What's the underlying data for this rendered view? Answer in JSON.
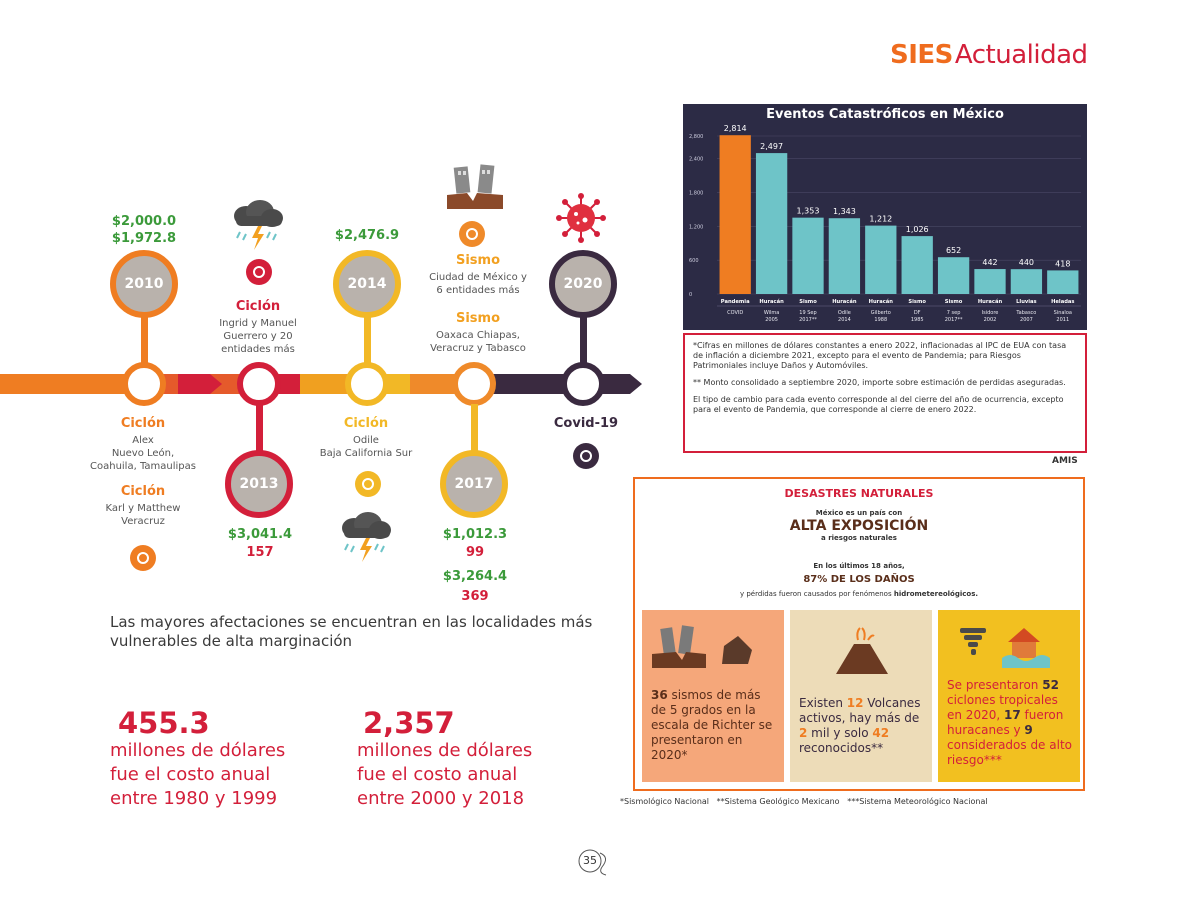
{
  "header": {
    "brand_a": "SIES",
    "brand_b": "Actualidad"
  },
  "timeline": {
    "y2010": {
      "year": "2010",
      "amount1": "$2,000.0",
      "amount2": "$1,972.8",
      "below_title1": "Ciclón",
      "below_text1": "Alex\nNuevo León,\nCoahuila, Tamaulipas",
      "below_title2": "Ciclón",
      "below_text2": "Karl y Matthew\nVeracruz"
    },
    "y2013": {
      "year": "2013",
      "above_title": "Ciclón",
      "above_text": "Ingrid y Manuel\nGuerrero y 20\nentidades más",
      "amount": "$3,041.4",
      "count": "157"
    },
    "y2014": {
      "year": "2014",
      "amount": "$2,476.9",
      "below_title": "Ciclón",
      "below_text": "Odile\nBaja California Sur"
    },
    "y2017": {
      "year": "2017",
      "above_title1": "Sismo",
      "above_text1": "Ciudad de México y\n6 entidades más",
      "above_title2": "Sismo",
      "above_text2": "Oaxaca Chiapas,\nVeracruz y Tabasco",
      "amount1": "$1,012.3",
      "count1": "99",
      "amount2": "$3,264.4",
      "count2": "369"
    },
    "y2020": {
      "year": "2020",
      "below_title": "Covid-19"
    }
  },
  "lede": "Las mayores afectaciones se encuentran en las localidades más vulnerables de alta marginación",
  "stat1": {
    "value": "455.3",
    "caption": "millones de dólares\nfue el costo anual\nentre 1980 y 1999"
  },
  "stat2": {
    "value": "2,357",
    "caption": "millones de dólares\nfue el costo anual\nentre 2000 y 2018"
  },
  "chart_data": {
    "type": "bar",
    "title": "Eventos Catastróficos en México",
    "ylim": [
      0,
      2800
    ],
    "yticks": [
      "0",
      "600",
      "1,200",
      "1,800",
      "2,400",
      "2,800"
    ],
    "categories": [
      "Pandemia",
      "Huracán",
      "Sismo",
      "Huracán",
      "Huracán",
      "Sismo",
      "Sismo",
      "Huracán",
      "Lluvias",
      "Heladas"
    ],
    "sublabels": [
      "COVID",
      "Wilma\n2005",
      "19 Sep\n2017**",
      "Odile\n2014",
      "Gilberto\n1988",
      "DF\n1985",
      "7 sep\n2017**",
      "Isidore\n2002",
      "Tabasco\n2007",
      "Sinaloa\n2011"
    ],
    "values": [
      2814,
      2497,
      1353,
      1343,
      1212,
      1026,
      652,
      442,
      440,
      418
    ],
    "value_labels": [
      "2,814",
      "2,497",
      "1,353",
      "1,343",
      "1,212",
      "1,026",
      "652",
      "442",
      "440",
      "418"
    ],
    "colors": {
      "highlight": "#ef7d22",
      "bars": "#6ec4c8",
      "background": "#2c2b45"
    },
    "grid": true
  },
  "notes": {
    "n1": "*Cifras en millones de dólares constantes a enero 2022, inflacionadas al IPC de EUA con tasa de inflación a diciembre 2021, excepto para el evento de Pandemia; para Riesgos Patrimoniales incluye Daños y Automóviles.",
    "n2": "** Monto consolidado a septiembre 2020, importe sobre estimación de perdidas aseguradas.",
    "n3": "El tipo de cambio para cada evento corresponde al del cierre del año de ocurrencia, excepto para el evento de Pandemia, que corresponde al cierre de enero 2022."
  },
  "source": "AMIS",
  "desastres": {
    "title": "DESASTRES NATURALES",
    "l1": "México es un país con",
    "l2": "ALTA EXPOSICIÓN",
    "l3": "a riesgos naturales",
    "l4": "En los últimos 18 años,",
    "l5": "87% DE LOS DAÑOS",
    "l6a": "y pérdidas fueron causados por fenómenos ",
    "l6b": "hidrometereológicos.",
    "card1": {
      "n": "36",
      "text": " sismos de más de 5 grados en la escala de Richter se presentaron en 2020*"
    },
    "card2": {
      "a": "Existen ",
      "n1": "12",
      "b": " Volcanes activos, hay más de ",
      "n2": "2",
      "c": " mil y solo ",
      "n3": "42",
      "d": " reconocidos**"
    },
    "card3": {
      "a": "Se presentaron ",
      "n1": "52",
      "b": " ciclones tropicales en 2020, ",
      "n2": "17",
      "c": " fueron huracanes y ",
      "n3": "9",
      "d": " considerados de alto riesgo***"
    }
  },
  "footnote": "*Sismológico Nacional   **Sistema Geológico Mexicano   ***Sistema Meteorológico Nacional",
  "page_number": "35",
  "colors": {
    "orange": "#ef7d22",
    "red": "#d31f3a",
    "yellow": "#f2b826",
    "green": "#3b9a3a",
    "purple": "#3a2a40"
  }
}
